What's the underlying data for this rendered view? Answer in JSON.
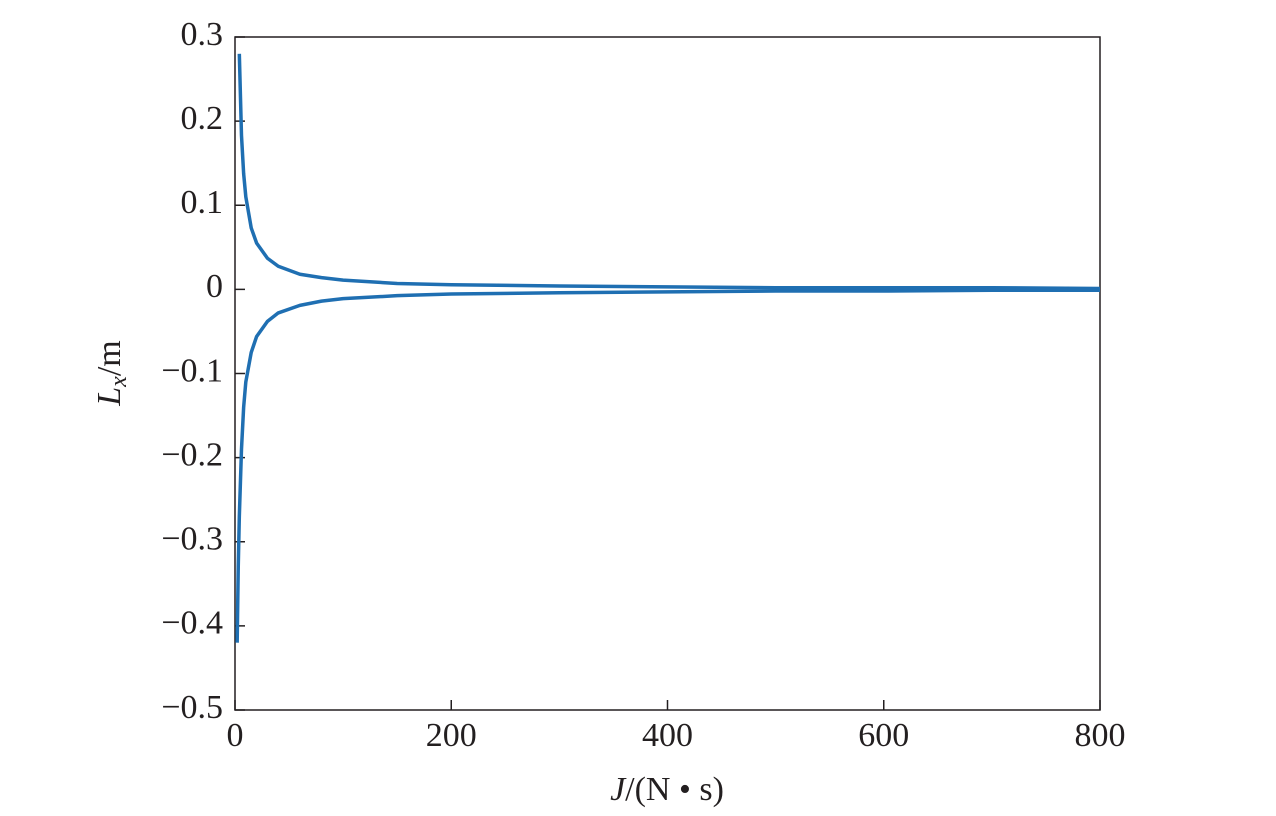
{
  "chart_data": {
    "type": "line",
    "xlabel": "J/(N • s)",
    "ylabel": "Lx/m",
    "x": [
      2,
      3,
      4,
      6,
      8,
      10,
      15,
      20,
      30,
      40,
      60,
      80,
      100,
      150,
      200,
      300,
      400,
      500,
      600,
      700,
      800
    ],
    "series": [
      {
        "color": "#1f6fb2",
        "values": [
          null,
          null,
          0.28,
          0.183,
          0.1375,
          0.11,
          0.073,
          0.055,
          0.037,
          0.0275,
          0.018,
          0.014,
          0.011,
          0.007,
          0.0055,
          0.004,
          0.003,
          0.002,
          0.002,
          0.002,
          0.001
        ]
      },
      {
        "color": "#1f6fb2",
        "values": [
          -0.42,
          -0.33,
          -0.27,
          -0.19,
          -0.14,
          -0.11,
          -0.075,
          -0.056,
          -0.038,
          -0.028,
          -0.019,
          -0.014,
          -0.011,
          -0.0075,
          -0.0055,
          -0.004,
          -0.003,
          -0.002,
          -0.002,
          -0.001,
          -0.001
        ]
      }
    ],
    "xlim": [
      0,
      800
    ],
    "xticks": [
      0,
      200,
      400,
      600,
      800
    ],
    "ylim": [
      -0.5,
      0.3
    ],
    "yticks": [
      {
        "value": -0.5,
        "label": "−0.5"
      },
      {
        "value": -0.4,
        "label": "−0.4"
      },
      {
        "value": -0.3,
        "label": "−0.3"
      },
      {
        "value": -0.2,
        "label": "−0.2"
      },
      {
        "value": -0.1,
        "label": "−0.1"
      },
      0,
      0.1,
      0.2,
      0.3
    ]
  }
}
